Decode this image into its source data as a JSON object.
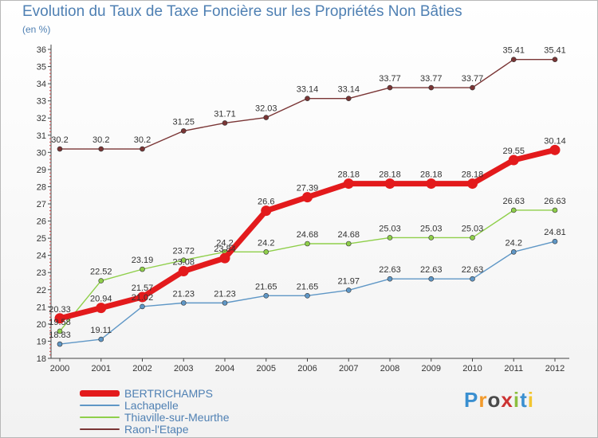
{
  "chart_data": {
    "type": "line",
    "title": "Evolution du Taux de Taxe Foncière sur les Propriétés Non Bâties",
    "unit_label": "(en %)",
    "xlabel": "",
    "ylabel": "",
    "x": [
      "2000",
      "2001",
      "2002",
      "2003",
      "2004",
      "2005",
      "2006",
      "2007",
      "2008",
      "2009",
      "2010",
      "2011",
      "2012"
    ],
    "ylim": [
      18,
      36
    ],
    "yticks": [
      "18",
      "19",
      "20",
      "21",
      "22",
      "23",
      "24",
      "25",
      "26",
      "27",
      "28",
      "29",
      "30",
      "31",
      "32",
      "33",
      "34",
      "35",
      "36"
    ],
    "grid": false,
    "legend_position": "bottom-left",
    "series": [
      {
        "name": "BERTRICHAMPS",
        "color": "#e31a1c",
        "values": [
          20.33,
          20.94,
          21.57,
          23.08,
          23.84,
          26.6,
          27.39,
          28.18,
          28.18,
          28.18,
          28.18,
          29.55,
          30.14
        ],
        "labels": [
          "20.33",
          "20.94",
          "21.57",
          "23.08",
          "23.84",
          "26.6",
          "27.39",
          "28.18",
          "28.18",
          "28.18",
          "28.18",
          "29.55",
          "30.14"
        ]
      },
      {
        "name": "Lachapelle",
        "color": "#5f97c6",
        "values": [
          18.83,
          19.11,
          21.02,
          21.23,
          21.23,
          21.65,
          21.65,
          21.97,
          22.63,
          22.63,
          22.63,
          24.2,
          24.81
        ],
        "labels": [
          "18.83",
          "19.11",
          "21.02",
          "21.23",
          "21.23",
          "21.65",
          "21.65",
          "21.97",
          "22.63",
          "22.63",
          "22.63",
          "24.2",
          "24.81"
        ]
      },
      {
        "name": "Thiaville-sur-Meurthe",
        "color": "#8fcf4a",
        "values": [
          19.58,
          22.52,
          23.19,
          23.72,
          24.2,
          24.2,
          24.68,
          24.68,
          25.03,
          25.03,
          25.03,
          26.63,
          26.63
        ],
        "labels": [
          "19.58",
          "22.52",
          "23.19",
          "23.72",
          "24.2",
          "24.2",
          "24.68",
          "24.68",
          "25.03",
          "25.03",
          "25.03",
          "26.63",
          "26.63"
        ]
      },
      {
        "name": "Raon-l'Etape",
        "color": "#7a3535",
        "values": [
          30.2,
          30.2,
          30.2,
          31.25,
          31.71,
          32.03,
          33.14,
          33.14,
          33.77,
          33.77,
          33.77,
          35.41,
          35.41
        ],
        "labels": [
          "30.2",
          "30.2",
          "30.2",
          "31.25",
          "31.71",
          "32.03",
          "33.14",
          "33.14",
          "33.77",
          "33.77",
          "33.77",
          "35.41",
          "35.41"
        ]
      }
    ]
  },
  "legend": {
    "items": [
      {
        "label": "BERTRICHAMPS",
        "color": "#e31a1c"
      },
      {
        "label": "Lachapelle",
        "color": "#5f97c6"
      },
      {
        "label": "Thiaville-sur-Meurthe",
        "color": "#8fcf4a"
      },
      {
        "label": "Raon-l'Etape",
        "color": "#7a3535"
      }
    ]
  },
  "logo": {
    "text": "Proxiti",
    "colors": [
      "#3a8fd0",
      "#f29a2b",
      "#4a4a4a",
      "#cc3333",
      "#8cbf3f",
      "#3a8fd0",
      "#f2c530"
    ]
  }
}
